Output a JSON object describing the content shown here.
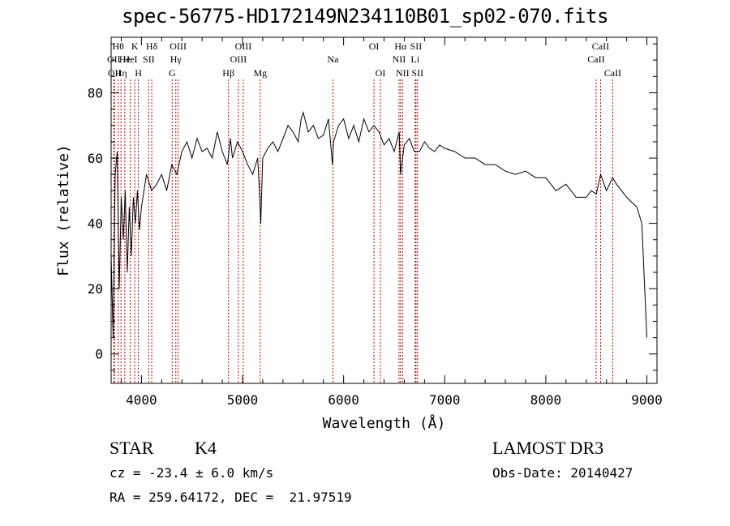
{
  "title": "spec-56775-HD172149N234110B01_sp02-070.fits",
  "info": {
    "class": "STAR",
    "subclass": "K4",
    "survey": "LAMOST DR3",
    "cz": "cz = -23.4 ± 6.0 km/s",
    "obs_date": "Obs-Date: 20140427",
    "coords": "RA = 259.64172, DEC =  21.97519"
  },
  "chart_data": {
    "type": "line",
    "xlabel": "Wavelength (Å)",
    "ylabel": "Flux (relative)",
    "xlim": [
      3700,
      9100
    ],
    "ylim": [
      -9,
      97
    ],
    "xticks": [
      4000,
      5000,
      6000,
      7000,
      8000,
      9000
    ],
    "yticks": [
      0,
      20,
      40,
      60,
      80
    ],
    "grid": false,
    "series": [
      {
        "x": [
          3700,
          3720,
          3740,
          3760,
          3780,
          3800,
          3820,
          3840,
          3860,
          3880,
          3900,
          3920,
          3940,
          3960,
          3980,
          4000,
          4050,
          4100,
          4150,
          4200,
          4250,
          4300,
          4350,
          4400,
          4450,
          4500,
          4550,
          4600,
          4650,
          4700,
          4750,
          4800,
          4850,
          4880,
          4900,
          4950,
          5000,
          5050,
          5100,
          5150,
          5170,
          5180,
          5200,
          5250,
          5300,
          5350,
          5400,
          5450,
          5500,
          5550,
          5580,
          5600,
          5650,
          5700,
          5750,
          5800,
          5850,
          5890,
          5900,
          5950,
          6000,
          6050,
          6100,
          6150,
          6200,
          6250,
          6300,
          6350,
          6400,
          6450,
          6500,
          6550,
          6563,
          6600,
          6650,
          6700,
          6750,
          6800,
          6850,
          6900,
          6950,
          7000,
          7100,
          7200,
          7300,
          7400,
          7500,
          7600,
          7700,
          7800,
          7900,
          8000,
          8100,
          8200,
          8300,
          8400,
          8450,
          8500,
          8542,
          8600,
          8662,
          8700,
          8800,
          8900,
          8950,
          9000
        ],
        "y": [
          30,
          5,
          55,
          62,
          20,
          48,
          35,
          50,
          25,
          45,
          30,
          48,
          40,
          50,
          38,
          45,
          55,
          50,
          52,
          55,
          50,
          58,
          55,
          62,
          65,
          60,
          66,
          62,
          63,
          60,
          68,
          62,
          58,
          66,
          60,
          65,
          62,
          58,
          55,
          60,
          48,
          40,
          60,
          63,
          65,
          62,
          66,
          70,
          68,
          65,
          72,
          74,
          68,
          70,
          66,
          67,
          72,
          58,
          65,
          70,
          72,
          66,
          70,
          65,
          72,
          68,
          70,
          68,
          64,
          66,
          62,
          68,
          55,
          64,
          66,
          62,
          62,
          65,
          63,
          62,
          64,
          63,
          62,
          60,
          60,
          58,
          58,
          56,
          55,
          56,
          54,
          54,
          50,
          52,
          48,
          48,
          50,
          49,
          55,
          50,
          54,
          52,
          48,
          45,
          40,
          5
        ]
      }
    ],
    "lines": [
      {
        "x": 3727,
        "label": "OII",
        "row": 2
      },
      {
        "x": 3734,
        "label": "OII",
        "row": 3
      },
      {
        "x": 3770,
        "label": "Hθ",
        "row": 1
      },
      {
        "x": 3798,
        "label": "Hη",
        "row": 3
      },
      {
        "x": 3835,
        "label": "He",
        "row": 2
      },
      {
        "x": 3889,
        "label": "HeI",
        "row": 2
      },
      {
        "x": 3934,
        "label": "K",
        "row": 1
      },
      {
        "x": 3969,
        "label": "H",
        "row": 3
      },
      {
        "x": 4072,
        "label": "SII",
        "row": 2
      },
      {
        "x": 4102,
        "label": "Hδ",
        "row": 1
      },
      {
        "x": 4304,
        "label": "G",
        "row": 3
      },
      {
        "x": 4340,
        "label": "Hγ",
        "row": 2
      },
      {
        "x": 4363,
        "label": "OIII",
        "row": 1
      },
      {
        "x": 4861,
        "label": "Hβ",
        "row": 3
      },
      {
        "x": 4959,
        "label": "OIII",
        "row": 2
      },
      {
        "x": 5007,
        "label": "OIII",
        "row": 1
      },
      {
        "x": 5175,
        "label": "Mg",
        "row": 3
      },
      {
        "x": 5894,
        "label": "Na",
        "row": 2
      },
      {
        "x": 6300,
        "label": "OI",
        "row": 1
      },
      {
        "x": 6364,
        "label": "OI",
        "row": 3
      },
      {
        "x": 6548,
        "label": "NII",
        "row": 2
      },
      {
        "x": 6563,
        "label": "Hα",
        "row": 1
      },
      {
        "x": 6583,
        "label": "NII",
        "row": 3
      },
      {
        "x": 6707,
        "label": "Li",
        "row": 2
      },
      {
        "x": 6716,
        "label": "SII",
        "row": 1
      },
      {
        "x": 6731,
        "label": "SII",
        "row": 3
      },
      {
        "x": 8498,
        "label": "CaII",
        "row": 2
      },
      {
        "x": 8542,
        "label": "CaII",
        "row": 1
      },
      {
        "x": 8662,
        "label": "CaII",
        "row": 3
      }
    ]
  }
}
